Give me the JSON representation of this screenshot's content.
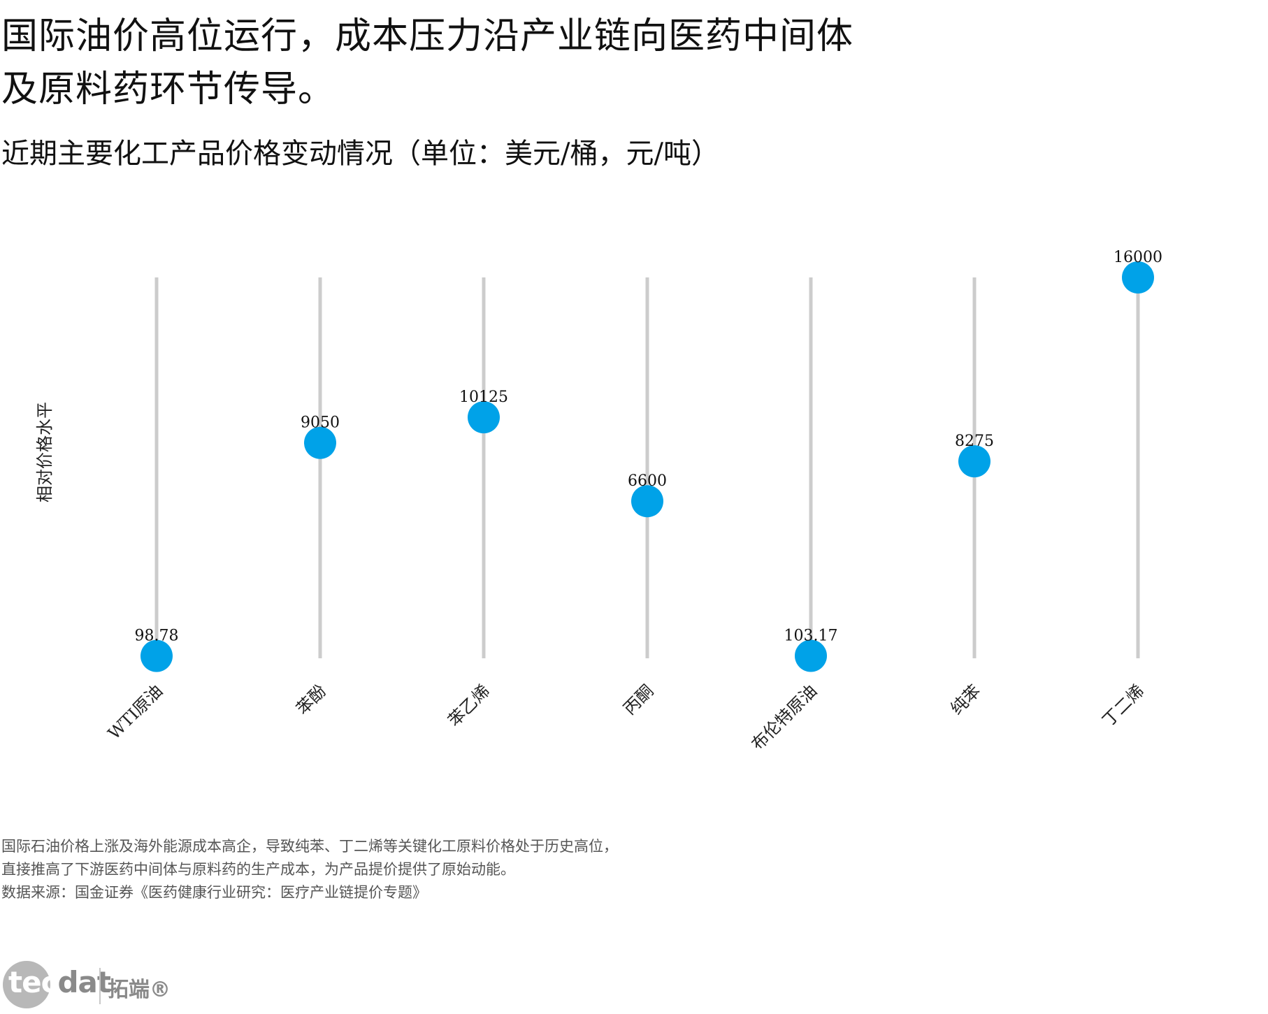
{
  "headline": {
    "line1": "国际油价高位运行，成本压力沿产业链向医药中间体",
    "line2": "及原料药环节传导。"
  },
  "subtitle": "近期主要化工产品价格变动情况（单位：美元/桶，元/吨）",
  "chart_data": {
    "type": "lollipop",
    "ylabel": "相对价格水平",
    "categories": [
      "WTI原油",
      "苯酚",
      "苯乙烯",
      "丙酮",
      "布伦特原油",
      "纯苯",
      "丁二烯"
    ],
    "values": [
      98.78,
      9050,
      10125,
      6600,
      103.17,
      8275,
      16000
    ],
    "value_labels": [
      "98.78",
      "9050",
      "10125",
      "6600",
      "103.17",
      "8275",
      "16000"
    ],
    "ylim": [
      0,
      16000
    ],
    "grid": false,
    "stem_color": "#cccccc",
    "point_color": "#00a2e8"
  },
  "caption": {
    "line1": "国际石油价格上涨及海外能源成本高企，导致纯苯、丁二烯等关键化工原料价格处于历史高位，",
    "line2": "直接推高了下游医药中间体与原料药的生产成本，为产品提价提供了原始动能。",
    "line3": "数据来源：国金证券《医药健康行业研究：医疗产业链提价专题》"
  },
  "brand": {
    "logo_text": "tecdat",
    "logo_text_a": "tec",
    "logo_text_b": "dat",
    "cn_name": "拓端®"
  }
}
